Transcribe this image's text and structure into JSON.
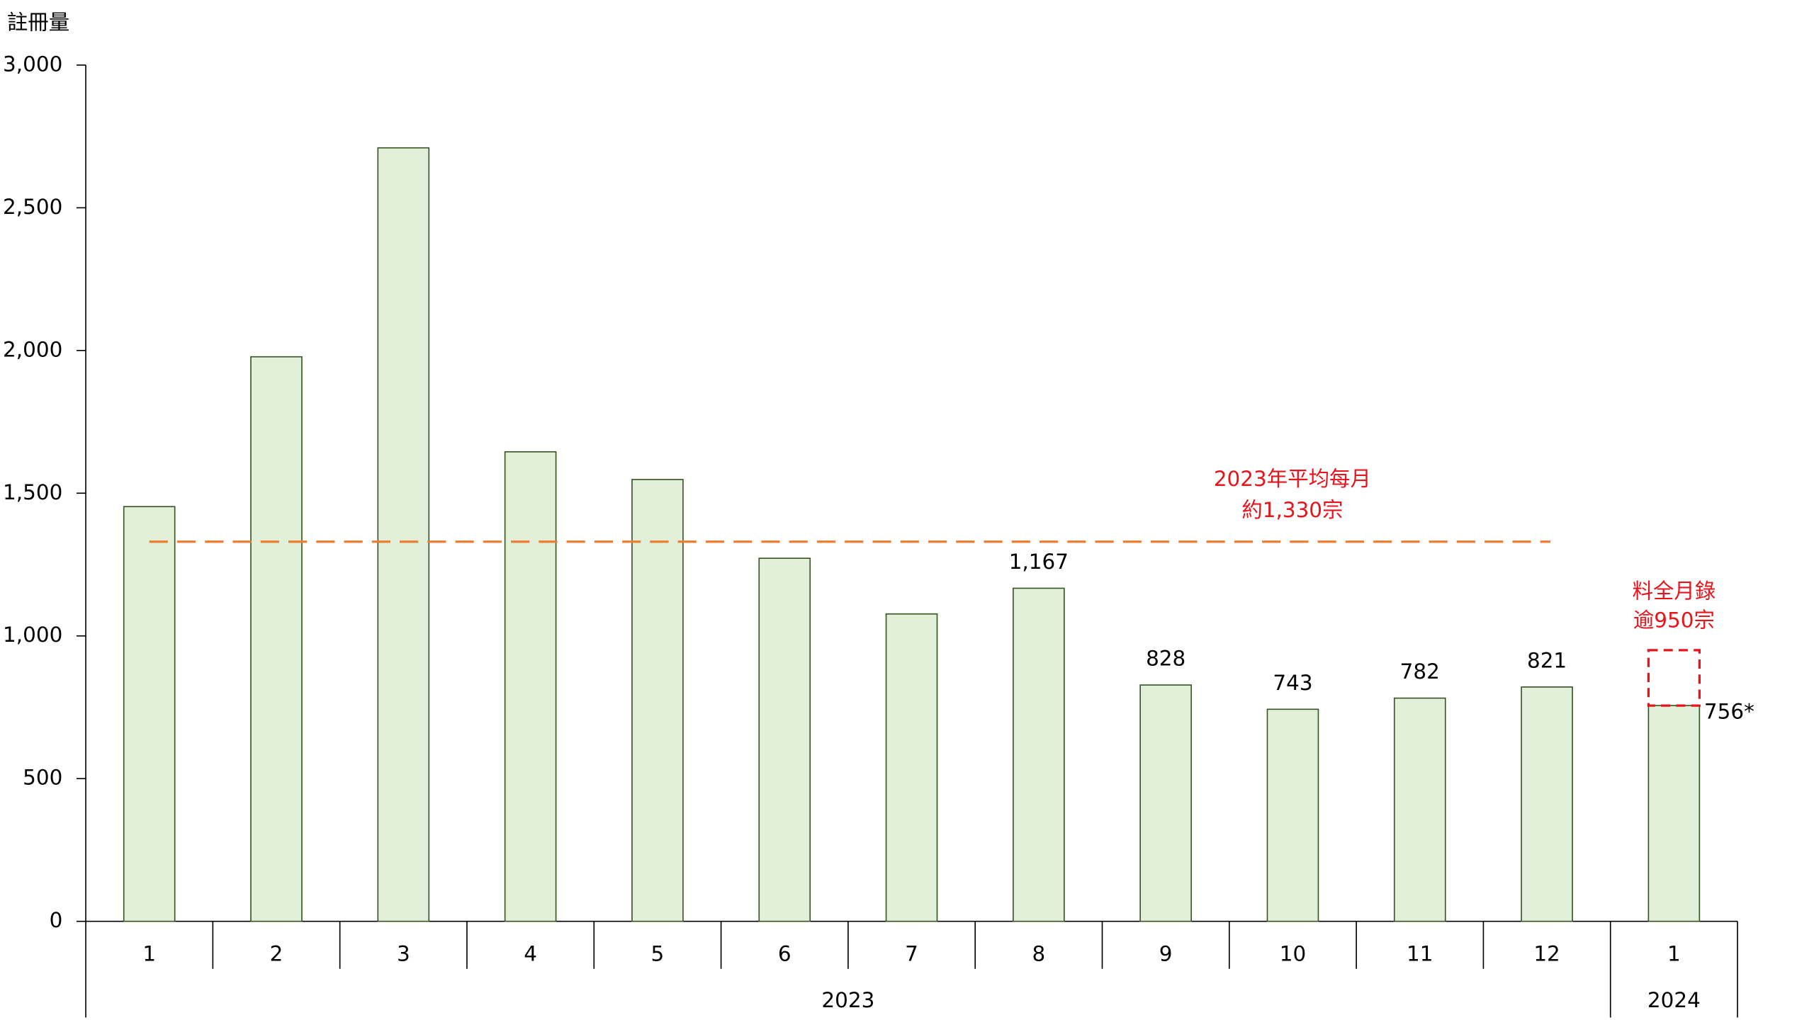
{
  "chart_data": {
    "type": "bar",
    "y_axis_label": "註冊量",
    "categories": [
      "1",
      "2",
      "3",
      "4",
      "5",
      "6",
      "7",
      "8",
      "9",
      "10",
      "11",
      "12",
      "1"
    ],
    "category_years": [
      "2023",
      "2023",
      "2023",
      "2023",
      "2023",
      "2023",
      "2023",
      "2023",
      "2023",
      "2023",
      "2023",
      "2023",
      "2024"
    ],
    "values": [
      1453,
      1978,
      2710,
      1645,
      1548,
      1272,
      1077,
      1167,
      828,
      743,
      782,
      821,
      756
    ],
    "value_labels": [
      null,
      null,
      null,
      null,
      null,
      null,
      null,
      "1,167",
      "828",
      "743",
      "782",
      "821",
      "756*"
    ],
    "color": "#e2efd9",
    "edge_color": "#375623",
    "ylim": [
      0,
      3000
    ],
    "yticks": [
      0,
      500,
      {
        "value": 1000,
        "label": "1,000"
      },
      {
        "value": 1500,
        "label": "1,500"
      },
      {
        "value": 2000,
        "label": "2,000"
      },
      {
        "value": 2500,
        "label": "2,500"
      },
      {
        "value": 3000,
        "label": "3,000"
      }
    ],
    "average": {
      "value": 1330,
      "color": "#ed7d31",
      "label_lines": [
        "2023年平均每月",
        "約1,330宗"
      ]
    },
    "projection": {
      "value": 950,
      "color": "#e8141b",
      "label_lines": [
        "料全月錄",
        "逾950宗"
      ]
    }
  }
}
